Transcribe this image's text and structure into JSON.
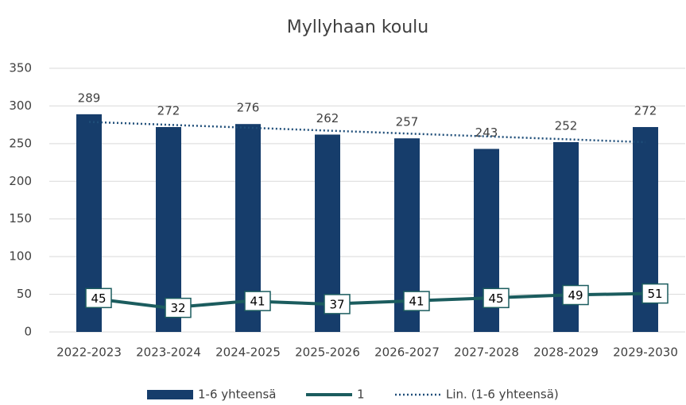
{
  "chart_data": {
    "type": "bar",
    "title": "Myllyhaan koulu",
    "categories": [
      "2022-2023",
      "2023-2024",
      "2024-2025",
      "2025-2026",
      "2026-2027",
      "2027-2028",
      "2028-2029",
      "2029-2030"
    ],
    "series": [
      {
        "name": "1-6 yhteensä",
        "kind": "bar",
        "color": "#163d6b",
        "values": [
          289,
          272,
          276,
          262,
          257,
          243,
          252,
          272
        ]
      },
      {
        "name": "1",
        "kind": "line",
        "color": "#1b5c5e",
        "values": [
          45,
          32,
          41,
          37,
          41,
          45,
          49,
          51
        ]
      },
      {
        "name": "Lin. (1-6 yhteensä)",
        "kind": "trendline",
        "color": "#1f4e79",
        "values": [
          278.8,
          275.0,
          271.1,
          267.3,
          263.4,
          259.6,
          255.8,
          251.9
        ]
      }
    ],
    "ylim": [
      0,
      350
    ],
    "yticks": [
      0,
      50,
      100,
      150,
      200,
      250,
      300,
      350
    ],
    "grid": true,
    "legend": "bottom"
  }
}
